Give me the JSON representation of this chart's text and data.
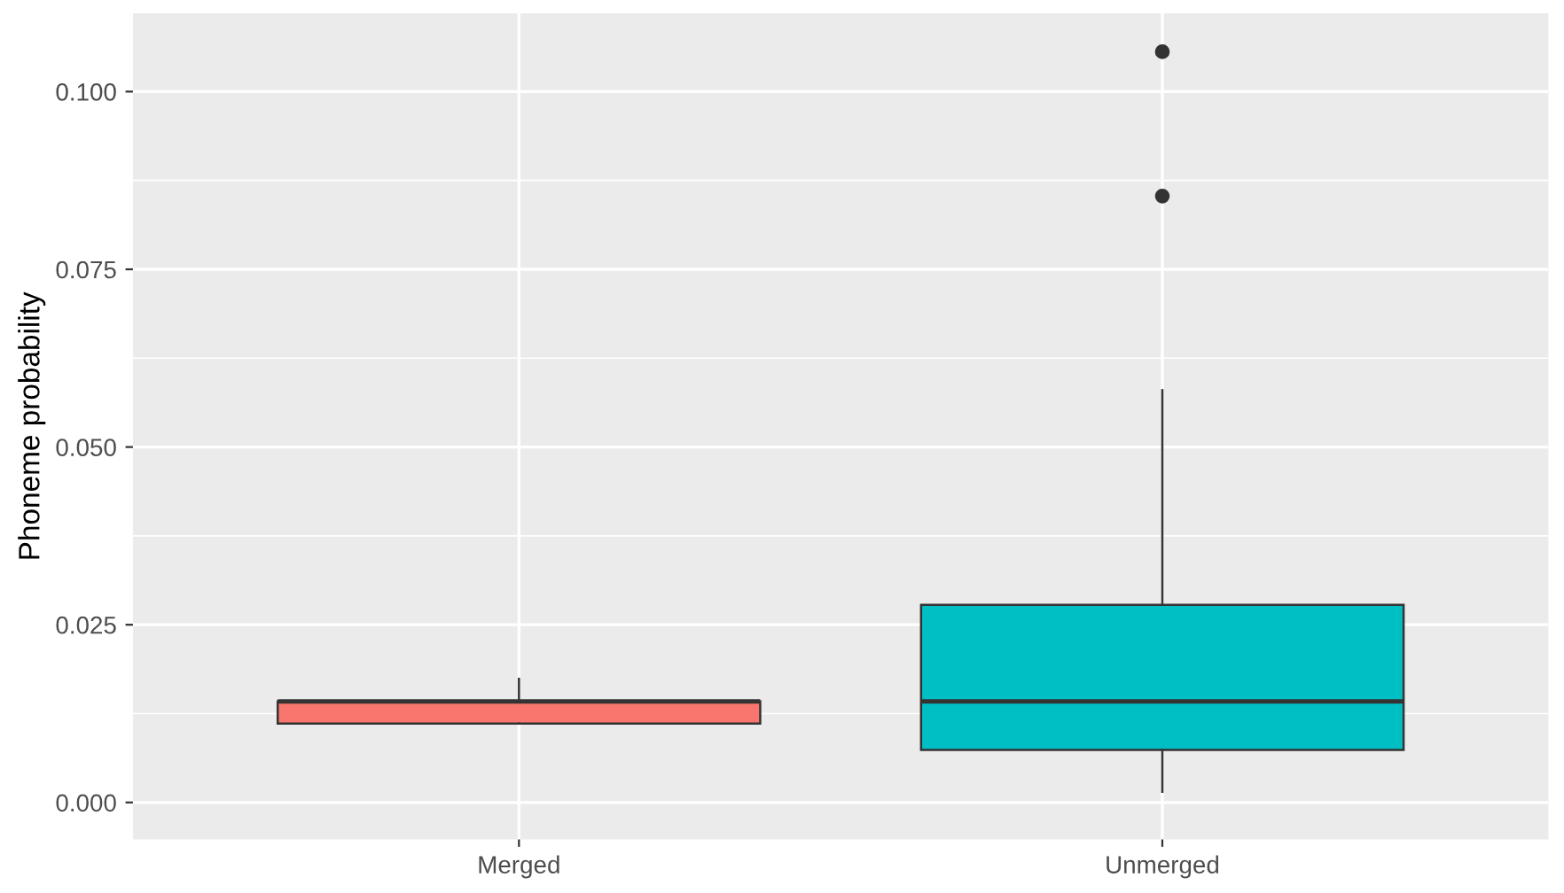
{
  "chart_data": {
    "type": "box",
    "ylabel": "Phoneme probability",
    "categories": [
      "Merged",
      "Unmerged"
    ],
    "colors": [
      "#f8766d",
      "#00bfc4"
    ],
    "boxes": [
      {
        "low": 0.0111,
        "q1": 0.0111,
        "median": 0.0142,
        "q3": 0.0142,
        "high": 0.0174
      },
      {
        "low": 0.0015,
        "q1": 0.0074,
        "median": 0.0142,
        "q3": 0.0278,
        "high": 0.058,
        "outliers": [
          0.0853,
          0.1056
        ]
      }
    ],
    "ylim": [
      -0.0052,
      0.111
    ],
    "yticks": [
      {
        "value": 0,
        "label": "0.000"
      },
      {
        "value": 0.025,
        "label": "0.025"
      },
      {
        "value": 0.05,
        "label": "0.050"
      },
      {
        "value": 0.075,
        "label": "0.075"
      },
      {
        "value": 0.1,
        "label": "0.100"
      }
    ],
    "grid": true,
    "legend": false
  }
}
